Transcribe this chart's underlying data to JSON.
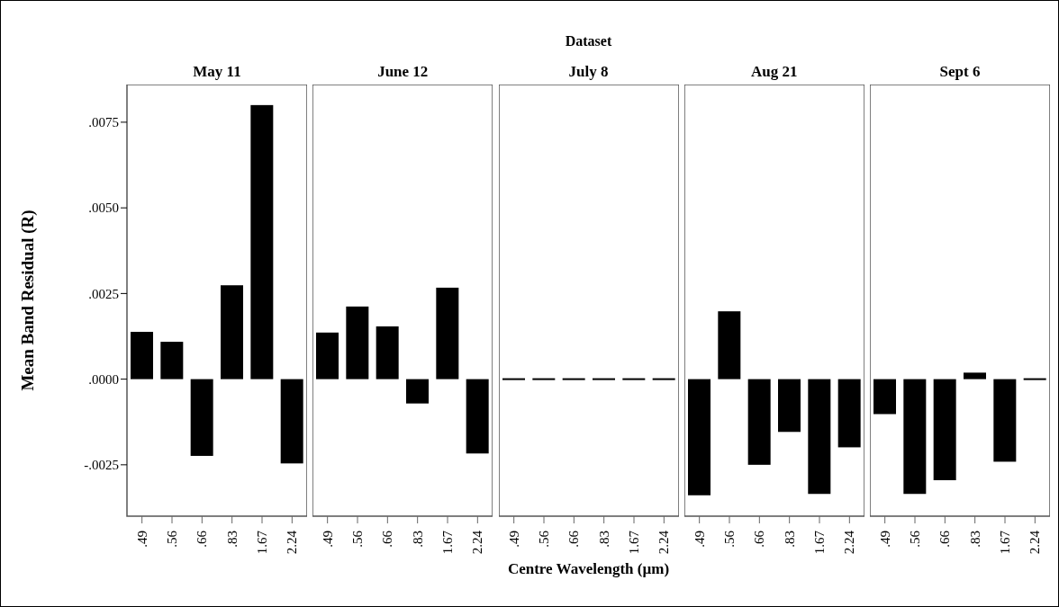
{
  "chart_data": [
    {
      "type": "bar",
      "title": "May 11",
      "annotations": [
        "Dataset"
      ],
      "ylabel": "Mean Band Residual (R)",
      "categories": [
        ".49",
        ".56",
        ".66",
        ".83",
        "1.67",
        "2.24"
      ],
      "values": [
        0.00138,
        0.00109,
        -0.00224,
        0.00274,
        0.008,
        -0.00246
      ],
      "color": "#000000",
      "ylim": [
        -0.004,
        0.0086
      ],
      "yticks": [
        {
          "value": -0.0025,
          "label": "-.0025"
        },
        {
          "value": 0,
          "label": ".0000"
        },
        {
          "value": 0.0025,
          "label": ".0025"
        },
        {
          "value": 0.005,
          "label": ".0050"
        },
        {
          "value": 0.0075,
          "label": ".0075"
        }
      ]
    },
    {
      "type": "bar",
      "title": "June 12",
      "categories": [
        ".49",
        ".56",
        ".66",
        ".83",
        "1.67",
        "2.24"
      ],
      "values": [
        0.00136,
        0.00212,
        0.00154,
        -0.00071,
        0.00267,
        -0.00217
      ],
      "color": "#000000",
      "ylim": [
        -0.004,
        0.0086
      ],
      "tick_labels": "x"
    },
    {
      "type": "bar",
      "title": "July 8",
      "xlabel": "Centre Wavelength (µm)",
      "categories": [
        ".49",
        ".56",
        ".66",
        ".83",
        "1.67",
        "2.24"
      ],
      "values": [
        0,
        0,
        0,
        0,
        0,
        0
      ],
      "color": "#000000",
      "ylim": [
        -0.004,
        0.0086
      ],
      "tick_labels": "x"
    },
    {
      "type": "bar",
      "title": "Aug 21",
      "categories": [
        ".49",
        ".56",
        ".66",
        ".83",
        "1.67",
        "2.24"
      ],
      "values": [
        -0.00339,
        0.00198,
        -0.0025,
        -0.00154,
        -0.00335,
        -0.00199
      ],
      "color": "#000000",
      "ylim": [
        -0.004,
        0.0086
      ],
      "tick_labels": "x"
    },
    {
      "type": "bar",
      "title": "Sept 6",
      "categories": [
        ".49",
        ".56",
        ".66",
        ".83",
        "1.67",
        "2.24"
      ],
      "values": [
        -0.00102,
        -0.00335,
        -0.00295,
        0.00019,
        -0.00241,
        0
      ],
      "color": "#000000",
      "ylim": [
        -0.004,
        0.0086
      ],
      "tick_labels": "x"
    }
  ]
}
